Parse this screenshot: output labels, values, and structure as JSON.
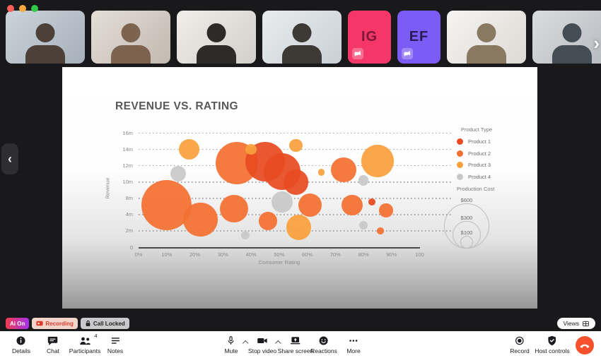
{
  "window_controls": {
    "close": "#FF5F57",
    "minimize": "#F7A93B",
    "zoom": "#30C844"
  },
  "participants": {
    "tiles": [
      {
        "kind": "video"
      },
      {
        "kind": "video"
      },
      {
        "kind": "video"
      },
      {
        "kind": "video"
      },
      {
        "kind": "initials",
        "initials": "IG",
        "bg": "#F43768",
        "fg": "#7E1638",
        "camera_off": true
      },
      {
        "kind": "initials",
        "initials": "EF",
        "bg": "#7D5CF6",
        "fg": "#2A1B55",
        "camera_off": true
      },
      {
        "kind": "video"
      },
      {
        "kind": "video"
      }
    ],
    "count_badge": "4"
  },
  "nav": {
    "prev": "‹",
    "next": "›"
  },
  "chart_data": {
    "type": "scatter",
    "subtype": "bubble",
    "title": "REVENUE VS. RATING",
    "xlabel": "Consumer Rating",
    "ylabel": "Revenue",
    "x_ticks": [
      "0%",
      "10%",
      "20%",
      "30%",
      "40%",
      "50%",
      "60%",
      "70%",
      "80%",
      "90%",
      "100"
    ],
    "y_ticks": [
      "16m",
      "14m",
      "12m",
      "10m",
      "8m",
      "4m",
      "2m",
      "0"
    ],
    "grid": "dotted-horizontal",
    "legend_position": "right",
    "legend": {
      "title": "Product Type",
      "entries": [
        {
          "label": "Product 1",
          "color": "#E84B22"
        },
        {
          "label": "Product 2",
          "color": "#F37031"
        },
        {
          "label": "Product 3",
          "color": "#F9A03C"
        },
        {
          "label": "Product 4",
          "color": "#C8C8C8"
        }
      ]
    },
    "size_legend": {
      "title": "Production Cost",
      "entries": [
        {
          "label": "$600",
          "cost_usd": 600
        },
        {
          "label": "$300",
          "cost_usd": 300
        },
        {
          "label": "$100",
          "cost_usd": 100
        }
      ]
    },
    "points": [
      {
        "rating_pct": 18,
        "revenue_m": 14.0,
        "cost_usd": 200,
        "product": 3
      },
      {
        "rating_pct": 14,
        "revenue_m": 11.0,
        "cost_usd": 130,
        "product": 4
      },
      {
        "rating_pct": 10,
        "revenue_m": 6.3,
        "cost_usd": 700,
        "product": 2
      },
      {
        "rating_pct": 22,
        "revenue_m": 3.4,
        "cost_usd": 400,
        "product": 2
      },
      {
        "rating_pct": 35,
        "revenue_m": 12.3,
        "cost_usd": 550,
        "product": 2
      },
      {
        "rating_pct": 34,
        "revenue_m": 5.4,
        "cost_usd": 300,
        "product": 2
      },
      {
        "rating_pct": 40,
        "revenue_m": 14.0,
        "cost_usd": 80,
        "product": 3
      },
      {
        "rating_pct": 45,
        "revenue_m": 12.5,
        "cost_usd": 500,
        "product": 1
      },
      {
        "rating_pct": 51,
        "revenue_m": 11.3,
        "cost_usd": 450,
        "product": 1
      },
      {
        "rating_pct": 38,
        "revenue_m": 1.5,
        "cost_usd": 55,
        "product": 4
      },
      {
        "rating_pct": 46,
        "revenue_m": 3.2,
        "cost_usd": 160,
        "product": 2
      },
      {
        "rating_pct": 56,
        "revenue_m": 10.0,
        "cost_usd": 260,
        "product": 1
      },
      {
        "rating_pct": 51,
        "revenue_m": 7.1,
        "cost_usd": 200,
        "product": 4
      },
      {
        "rating_pct": 56,
        "revenue_m": 14.5,
        "cost_usd": 100,
        "product": 3
      },
      {
        "rating_pct": 61,
        "revenue_m": 6.3,
        "cost_usd": 240,
        "product": 2
      },
      {
        "rating_pct": 57,
        "revenue_m": 2.4,
        "cost_usd": 260,
        "product": 3
      },
      {
        "rating_pct": 65,
        "revenue_m": 11.2,
        "cost_usd": 40,
        "product": 3
      },
      {
        "rating_pct": 73,
        "revenue_m": 11.5,
        "cost_usd": 260,
        "product": 2
      },
      {
        "rating_pct": 76,
        "revenue_m": 6.3,
        "cost_usd": 200,
        "product": 2
      },
      {
        "rating_pct": 80,
        "revenue_m": 10.2,
        "cost_usd": 70,
        "product": 4
      },
      {
        "rating_pct": 80,
        "revenue_m": 2.7,
        "cost_usd": 55,
        "product": 4
      },
      {
        "rating_pct": 83,
        "revenue_m": 7.1,
        "cost_usd": 40,
        "product": 1
      },
      {
        "rating_pct": 85,
        "revenue_m": 12.6,
        "cost_usd": 370,
        "product": 3
      },
      {
        "rating_pct": 88,
        "revenue_m": 5.0,
        "cost_usd": 110,
        "product": 2
      },
      {
        "rating_pct": 86,
        "revenue_m": 2.0,
        "cost_usd": 40,
        "product": 2
      }
    ]
  },
  "status_badges": {
    "ai": {
      "label": "Ai On",
      "gradient_from": "#F23B4C",
      "gradient_to": "#A432EE"
    },
    "recording": {
      "label": "Recording",
      "bg": "#F2D4CA",
      "fg": "#DD3B2B"
    },
    "call_locked": {
      "label": "Call Locked",
      "bg": "#C9C9CB",
      "fg": "#222222"
    }
  },
  "views_button": {
    "label": "Views"
  },
  "toolbar": {
    "details": "Details",
    "chat": "Chat",
    "participants": "Participants",
    "participants_count": "4",
    "notes": "Notes",
    "mute": "Mute",
    "stop_video": "Stop video",
    "share_screen": "Share screen",
    "reactions": "Reactions",
    "more": "More",
    "record": "Record",
    "host_controls": "Host controls",
    "end_call_color": "#F4512C"
  }
}
